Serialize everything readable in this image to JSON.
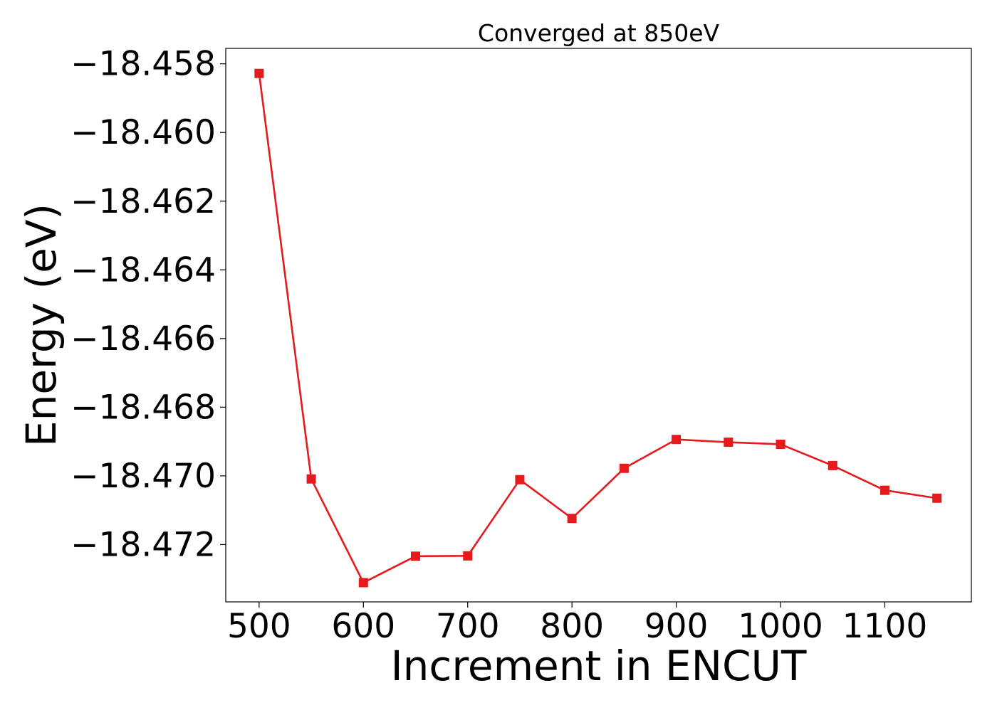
{
  "chart_data": {
    "type": "line",
    "title": "Converged at 850eV",
    "xlabel": "Increment in ENCUT",
    "ylabel": "Energy (eV)",
    "xlim": [
      468,
      1183
    ],
    "ylim": [
      -18.47367,
      -18.45755
    ],
    "xticks": [
      500,
      600,
      700,
      800,
      900,
      1000,
      1100
    ],
    "xtick_labels": [
      "500",
      "600",
      "700",
      "800",
      "900",
      "1000",
      "1100"
    ],
    "yticks": [
      -18.458,
      -18.46,
      -18.462,
      -18.464,
      -18.466,
      -18.468,
      -18.47,
      -18.472
    ],
    "ytick_labels": [
      "−18.458",
      "−18.460",
      "−18.462",
      "−18.464",
      "−18.466",
      "−18.468",
      "−18.470",
      "−18.472"
    ],
    "grid": false,
    "legend": "none",
    "series": [
      {
        "color": "#e41a1c",
        "marker": "square",
        "x": [
          500,
          550,
          600,
          650,
          700,
          750,
          800,
          850,
          900,
          950,
          1000,
          1050,
          1100,
          1150
        ],
        "y": [
          -18.45828,
          -18.47009,
          -18.47311,
          -18.47234,
          -18.47233,
          -18.47011,
          -18.47124,
          -18.46978,
          -18.46894,
          -18.46902,
          -18.46908,
          -18.4697,
          -18.47042,
          -18.47065
        ]
      }
    ]
  }
}
